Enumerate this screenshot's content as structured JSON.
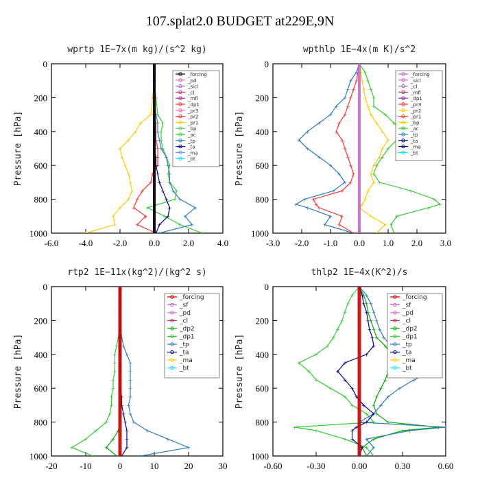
{
  "title": "107.splat2.0  BUDGET at229E,9N",
  "ylabel": "Pressure [hPa]",
  "chart_data": [
    {
      "type": "line",
      "title": "wprtp  1E−7x(m kg)/(s^2 kg)",
      "xlim": [
        -6.0,
        4.0
      ],
      "xticks": [
        "-6.0",
        "-4.0",
        "-2.0",
        "0.0",
        "2.0",
        "4.0"
      ],
      "ylim": [
        1000,
        0
      ],
      "yticks": [
        "0",
        "200",
        "400",
        "600",
        "800",
        "1000"
      ],
      "legend": [
        "_forcing",
        "_pd",
        "_sicl",
        "_cl",
        "_mfl",
        "_dp1",
        "_pr3",
        "_pr2",
        "_pr1",
        "_bp",
        "_ac",
        "_tp",
        "_ta",
        "_ma",
        "_bt"
      ],
      "legend_position": "top-right",
      "pressure": [
        0,
        100,
        200,
        300,
        350,
        400,
        450,
        500,
        550,
        600,
        650,
        700,
        750,
        800,
        850,
        900,
        950,
        1000
      ],
      "series": [
        {
          "name": "_pr1",
          "color": "#ffcc00",
          "values": [
            0,
            0,
            -0.1,
            -0.2,
            -0.8,
            -1.1,
            -1.5,
            -2.0,
            -1.9,
            -1.7,
            -1.5,
            -1.4,
            -1.3,
            -1.5,
            -2.0,
            -2.4,
            -2.3,
            -4.0
          ]
        },
        {
          "name": "_ac",
          "color": "#33cc33",
          "values": [
            0,
            0,
            0.1,
            0.2,
            0.5,
            0.4,
            0.4,
            0.5,
            0.7,
            0.9,
            0.8,
            0.9,
            1.3,
            1.2,
            -0.4,
            0.6,
            1.5,
            2.8
          ]
        },
        {
          "name": "_tp",
          "color": "#2a7bbf",
          "values": [
            0,
            0,
            0,
            0.1,
            0.2,
            0.2,
            0.3,
            0.4,
            0.7,
            0.8,
            0.9,
            0.9,
            1.1,
            1.5,
            2.4,
            1.8,
            2.2,
            0.3
          ]
        },
        {
          "name": "_pr2",
          "color": "#ff3333",
          "values": [
            0,
            0,
            0,
            0,
            0.1,
            0.1,
            0.1,
            0.2,
            0.2,
            0.2,
            -0.1,
            -0.2,
            -0.7,
            -1.0,
            -1.2,
            -0.5,
            -1.0,
            0.1
          ]
        },
        {
          "name": "_ta",
          "color": "#000099",
          "values": [
            0,
            0,
            0,
            0,
            0,
            0,
            0,
            0,
            0.1,
            0.1,
            0.2,
            0.3,
            0.5,
            0.7,
            0.9,
            0.8,
            0.3,
            0.1
          ]
        },
        {
          "name": "_bt",
          "color": "#00e5ff",
          "values": [
            0,
            0,
            0,
            0,
            0,
            0,
            0,
            0,
            0,
            0,
            0,
            0,
            0,
            0,
            0,
            0,
            0,
            0
          ]
        },
        {
          "name": "_pd",
          "color": "#cc66cc",
          "values": [
            0,
            0,
            0,
            0,
            0,
            0,
            0,
            0,
            0,
            0,
            0,
            0,
            0,
            0,
            0,
            0,
            0,
            0
          ]
        },
        {
          "name": "_forcing",
          "color": "#000000",
          "values": [
            0,
            0,
            0,
            0,
            0,
            0,
            0,
            0,
            0,
            0,
            0,
            0,
            0,
            0,
            0,
            0,
            0,
            0
          ]
        }
      ]
    },
    {
      "type": "line",
      "title": "wpthlp  1E−4x(m K)/s^2",
      "xlim": [
        -3.0,
        3.0
      ],
      "xticks": [
        "-3.0",
        "-2.0",
        "-1.0",
        "0.0",
        "1.0",
        "2.0",
        "3.0"
      ],
      "ylim": [
        1000,
        0
      ],
      "yticks": [
        "0",
        "200",
        "400",
        "600",
        "800",
        "1000"
      ],
      "legend": [
        "_forcing",
        "_sicl",
        "_cl",
        "_mfl",
        "_dp1",
        "_pr3",
        "_pr2",
        "_pr1",
        "_bp",
        "_ac",
        "_tp",
        "_ta",
        "_ma",
        "_bt"
      ],
      "legend_position": "top-right",
      "pressure": [
        0,
        50,
        100,
        150,
        200,
        250,
        300,
        350,
        400,
        450,
        500,
        550,
        600,
        650,
        700,
        750,
        800,
        830,
        850,
        900,
        950,
        1000
      ],
      "series": [
        {
          "name": "_tp",
          "color": "#2a7bbf",
          "values": [
            0,
            -0.1,
            -0.3,
            -0.4,
            -0.5,
            -0.8,
            -1.0,
            -1.4,
            -1.8,
            -2.1,
            -1.8,
            -1.4,
            -1.0,
            -0.7,
            -0.5,
            -0.9,
            -1.9,
            -2.2,
            -1.8,
            -1.0,
            -1.2,
            -0.2
          ]
        },
        {
          "name": "_pr1",
          "color": "#ff3333",
          "values": [
            0,
            -0.05,
            -0.1,
            -0.2,
            -0.3,
            -0.4,
            -0.5,
            -0.7,
            -0.8,
            -0.6,
            -0.5,
            -0.4,
            -0.3,
            -0.2,
            -0.3,
            -0.6,
            -1.6,
            -1.5,
            -1.4,
            -0.6,
            -0.7,
            -0.2
          ]
        },
        {
          "name": "_ac",
          "color": "#33cc33",
          "values": [
            0,
            0.2,
            0.3,
            0.4,
            0.5,
            0.5,
            0.9,
            1.2,
            1.5,
            1.3,
            1.0,
            0.8,
            0.6,
            0.5,
            0.7,
            1.8,
            2.6,
            2.8,
            2.4,
            1.3,
            1.1,
            1.2
          ]
        },
        {
          "name": "_pr2",
          "color": "#ffcc00",
          "values": [
            0,
            0.05,
            0.1,
            0.15,
            0.2,
            0.3,
            0.4,
            0.6,
            0.8,
            1.0,
            0.8,
            0.7,
            0.5,
            0.4,
            0.5,
            0.3,
            0.2,
            0.1,
            0.0,
            0.4,
            0.9,
            0.6
          ]
        },
        {
          "name": "_forcing",
          "color": "#cc66cc",
          "values": [
            0,
            0,
            0,
            0,
            0,
            0,
            0,
            0,
            0,
            0,
            0,
            0,
            0,
            0,
            0,
            0,
            0,
            0,
            0,
            0,
            0,
            0
          ]
        }
      ]
    },
    {
      "type": "line",
      "title": "rtp2  1E−11x(kg^2)/(kg^2 s)",
      "xlim": [
        -20,
        30
      ],
      "xticks": [
        "-20",
        "-10",
        "0",
        "10",
        "20",
        "30"
      ],
      "ylim": [
        1000,
        0
      ],
      "yticks": [
        "0",
        "200",
        "400",
        "600",
        "800",
        "1000"
      ],
      "legend": [
        "_forcing",
        "_sf",
        "_pd",
        "_cl",
        "_dp2",
        "_dp1",
        "_tp",
        "_ta",
        "_ma",
        "_bt"
      ],
      "legend_position": "top-right",
      "pressure": [
        0,
        100,
        200,
        300,
        350,
        400,
        450,
        500,
        550,
        600,
        650,
        700,
        750,
        800,
        850,
        900,
        950,
        1000
      ],
      "series": [
        {
          "name": "_dp1",
          "color": "#33cc33",
          "values": [
            0,
            0,
            0,
            -0.5,
            -1,
            -1.5,
            -1.5,
            -1.5,
            -2,
            -2,
            -2.5,
            -2.5,
            -3,
            -4,
            -7,
            -10,
            -14,
            -8
          ]
        },
        {
          "name": "_tp",
          "color": "#2a7bbf",
          "values": [
            0,
            0,
            0,
            0.5,
            1,
            2,
            3,
            3,
            3,
            3,
            3,
            2.5,
            3,
            4,
            8,
            14,
            20,
            6
          ]
        },
        {
          "name": "_dp2",
          "color": "#00aa00",
          "values": [
            0,
            0,
            0,
            0,
            0,
            0,
            0,
            0,
            0,
            0,
            0,
            0,
            0,
            0,
            -0.5,
            -2,
            -4,
            -1
          ]
        },
        {
          "name": "_ta",
          "color": "#000099",
          "values": [
            0,
            0,
            0,
            0,
            0,
            0,
            0,
            0,
            0,
            0,
            0.5,
            0.5,
            1,
            1.5,
            2,
            2,
            2,
            0.5
          ]
        },
        {
          "name": "_forcing",
          "color": "#cc0000",
          "values": [
            0,
            0,
            0,
            0,
            0,
            0,
            0,
            0,
            0,
            0,
            0,
            0,
            0,
            0,
            0,
            0,
            0,
            0
          ]
        }
      ]
    },
    {
      "type": "line",
      "title": "thlp2  1E−4x(K^2)/s",
      "xlim": [
        -0.6,
        0.6
      ],
      "xticks": [
        "-0.60",
        "-0.30",
        "0.00",
        "0.30",
        "0.60"
      ],
      "ylim": [
        1000,
        0
      ],
      "yticks": [
        "0",
        "200",
        "400",
        "600",
        "800",
        "1000"
      ],
      "legend": [
        "_forcing",
        "_sf",
        "_pd",
        "_cl",
        "_dp2",
        "_dp1",
        "_tp",
        "_ta",
        "_ma",
        "_bt"
      ],
      "legend_position": "top-right",
      "pressure": [
        0,
        50,
        100,
        150,
        200,
        250,
        300,
        350,
        400,
        450,
        500,
        550,
        600,
        650,
        700,
        750,
        800,
        830,
        850,
        900,
        950,
        1000
      ],
      "series": [
        {
          "name": "_dp1",
          "color": "#33cc33",
          "values": [
            0,
            -0.05,
            -0.08,
            -0.1,
            -0.12,
            -0.15,
            -0.18,
            -0.22,
            -0.3,
            -0.42,
            -0.35,
            -0.3,
            -0.2,
            -0.1,
            -0.05,
            0.05,
            0.1,
            -0.45,
            -0.3,
            -0.1,
            0.05,
            0.1
          ]
        },
        {
          "name": "_dp2",
          "color": "#00aa00",
          "values": [
            0,
            0.03,
            0.05,
            0.06,
            0.08,
            0.1,
            0.12,
            0.18,
            0.22,
            0.25,
            0.2,
            0.18,
            0.15,
            0.12,
            0.1,
            0.12,
            0.2,
            0.55,
            0.3,
            0.1,
            0.02,
            0.05
          ]
        },
        {
          "name": "_tp",
          "color": "#2a7bbf",
          "values": [
            0,
            0.05,
            0.08,
            0.1,
            0.12,
            0.14,
            0.17,
            0.22,
            0.3,
            0.45,
            0.5,
            0.38,
            0.28,
            0.2,
            0.15,
            0.1,
            0.0,
            0.6,
            0.35,
            0.05,
            0.1,
            0.05
          ]
        },
        {
          "name": "_ta",
          "color": "#000099",
          "values": [
            0,
            0.02,
            0.03,
            0.05,
            0.06,
            0.07,
            0.09,
            0.1,
            0.05,
            -0.1,
            -0.15,
            -0.1,
            -0.05,
            -0.02,
            0.03,
            0.1,
            0.05,
            -0.02,
            -0.05,
            -0.05,
            0.02,
            0.0
          ]
        },
        {
          "name": "_forcing",
          "color": "#cc0000",
          "values": [
            0,
            0,
            0,
            0,
            0,
            0,
            0,
            0,
            0,
            0,
            0,
            0,
            0,
            0,
            0,
            0,
            0,
            0,
            0,
            0,
            0,
            0
          ]
        }
      ]
    }
  ]
}
